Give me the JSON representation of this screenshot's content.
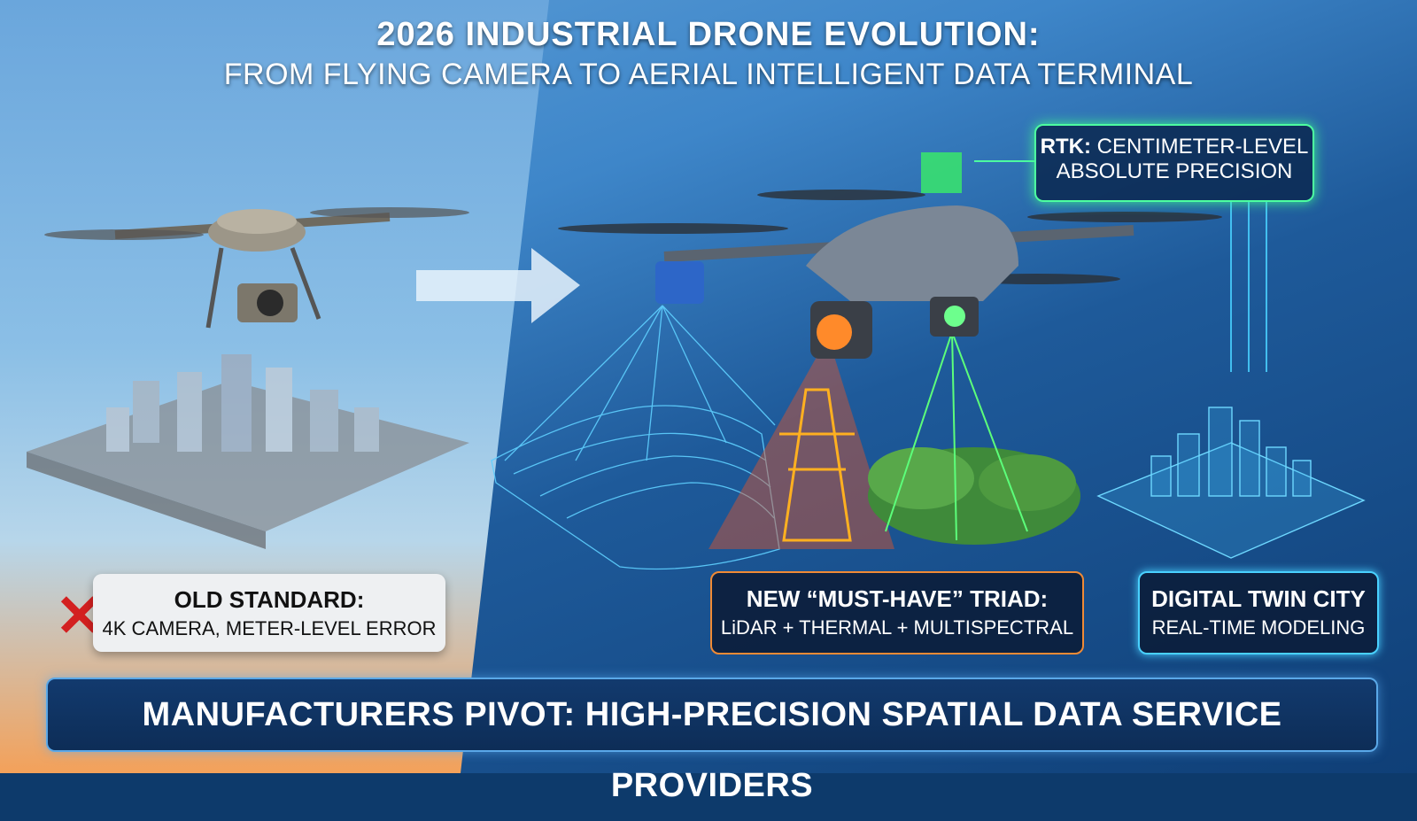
{
  "title": {
    "line1": "2026 INDUSTRIAL DRONE EVOLUTION:",
    "line2": "FROM FLYING CAMERA TO AERIAL INTELLIGENT DATA TERMINAL"
  },
  "rtk": {
    "label_bold": "RTK:",
    "label_rest": " CENTIMETER-LEVEL",
    "line2": "ABSOLUTE PRECISION"
  },
  "old_standard": {
    "heading": "OLD STANDARD:",
    "detail": "4K CAMERA, METER-LEVEL ERROR"
  },
  "triad": {
    "heading": "NEW “MUST-HAVE” TRIAD:",
    "detail": "LiDAR + THERMAL + MULTISPECTRAL"
  },
  "twin": {
    "heading": "DIGITAL TWIN CITY",
    "detail": "REAL-TIME MODELING"
  },
  "banner": "MANUFACTURERS PIVOT: HIGH-PRECISION SPATIAL DATA SERVICE PROVIDERS",
  "colors": {
    "rtk_green": "#4dffa0",
    "thermal_orange": "#f08a35",
    "twin_cyan": "#49d1ff",
    "old_x_red": "#d32020"
  },
  "icons": [
    "old-drone-icon",
    "blurred-city-icon",
    "arrow-right-icon",
    "new-drone-icon",
    "lidar-mesh-icon",
    "power-tower-icon",
    "forest-icon",
    "digital-city-icon",
    "x-mark-icon"
  ]
}
